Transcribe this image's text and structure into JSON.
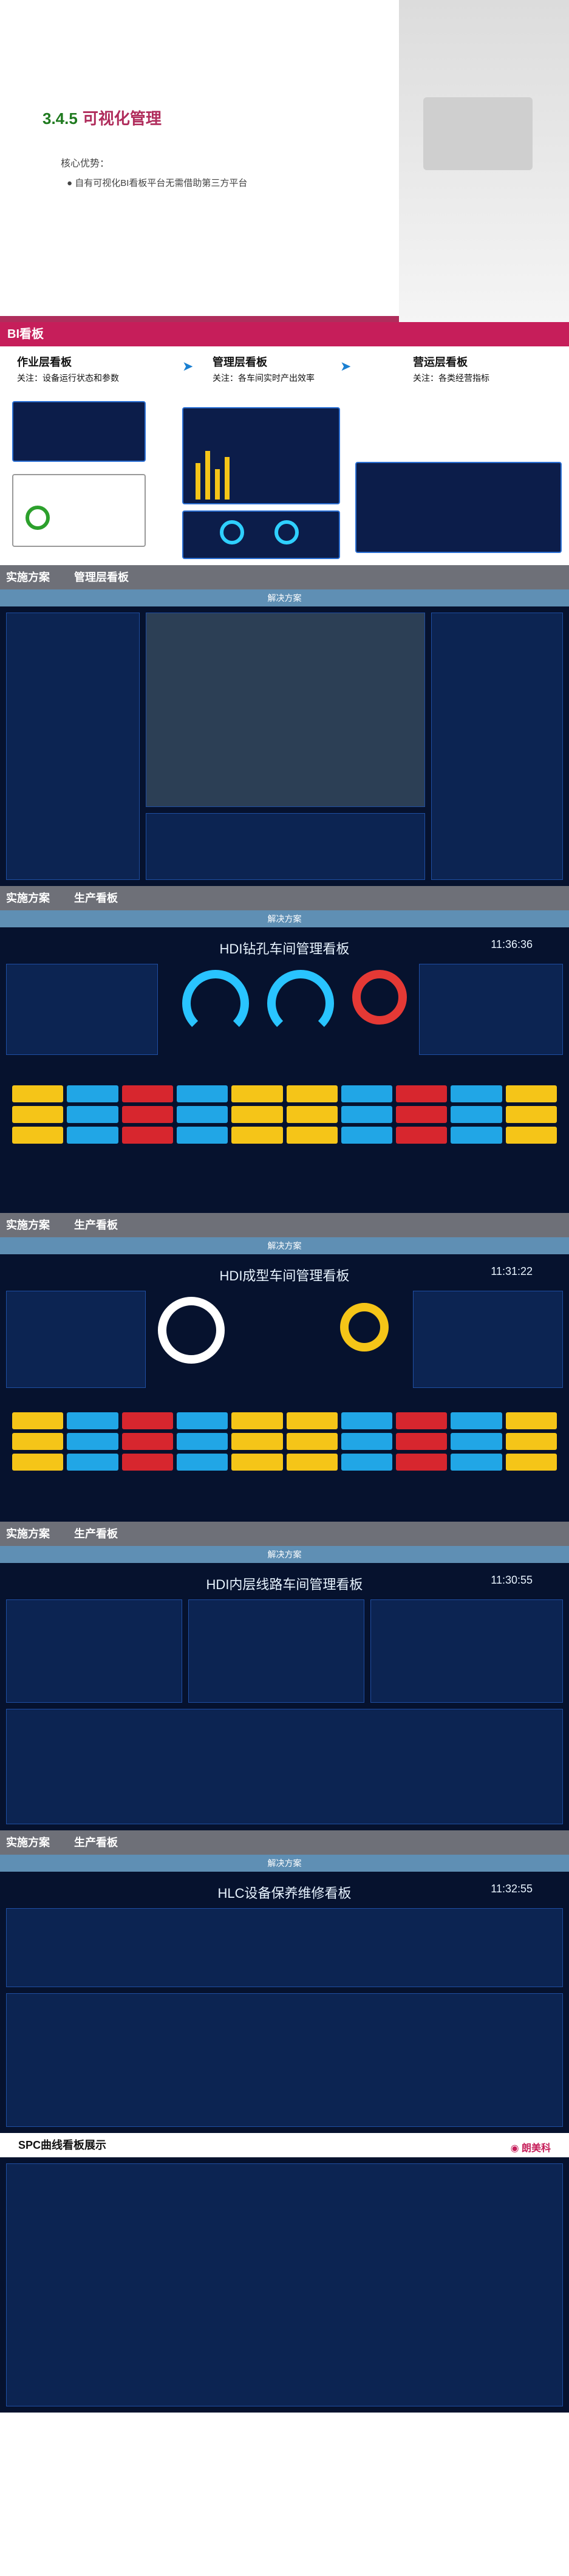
{
  "hero": {
    "title_number": "3.4.5",
    "title_text": "可视化管理",
    "sub": "核心优势：",
    "bullet": "● 自有可视化BI看板平台无需借助第三方平台"
  },
  "bi": {
    "title": "BI看板",
    "stages": [
      {
        "name": "作业层看板",
        "desc": "关注：设备运行状态和参数"
      },
      {
        "name": "管理层看板",
        "desc": "关注：各车间实时产出效率"
      },
      {
        "name": "营运层看板",
        "desc": "关注：各类经营指标"
      }
    ]
  },
  "sections": [
    {
      "label": "实施方案",
      "tag": "管理层看板",
      "sub": "解决方案"
    },
    {
      "label": "实施方案",
      "tag": "生产看板",
      "sub": "解决方案",
      "dash_title": "HDI钻孔车间管理看板",
      "time": "11:36:36"
    },
    {
      "label": "实施方案",
      "tag": "生产看板",
      "sub": "解决方案",
      "dash_title": "HDI成型车间管理看板",
      "time": "11:31:22"
    },
    {
      "label": "实施方案",
      "tag": "生产看板",
      "sub": "解决方案",
      "dash_title": "HDI内层线路车间管理看板",
      "time": "11:30:55"
    },
    {
      "label": "实施方案",
      "tag": "生产看板",
      "sub": "解决方案",
      "dash_title": "HLC设备保养维修看板",
      "time": "11:32:55"
    }
  ],
  "spc": {
    "title": "SPC曲线看板展示",
    "brand": "◉ 朗美科"
  },
  "cell_colors": [
    "#f5c518",
    "#21a6e6",
    "#d7262e",
    "#21a6e6",
    "#f5c518"
  ]
}
